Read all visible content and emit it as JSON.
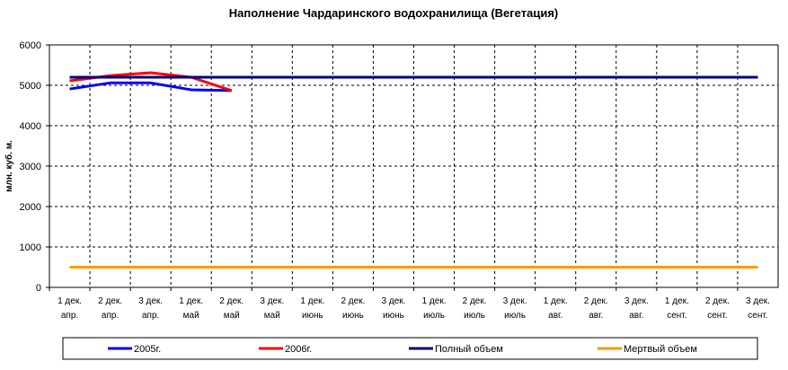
{
  "chart_data": {
    "type": "line",
    "title": "Наполнение Чардаринского водохранилища (Вегетация)",
    "y_label": "млн. куб. м.",
    "categories": [
      [
        "1 дек.",
        "апр."
      ],
      [
        "2 дек.",
        "апр."
      ],
      [
        "3 дек.",
        "апр."
      ],
      [
        "1 дек.",
        "май"
      ],
      [
        "2 дек.",
        "май"
      ],
      [
        "3 дек.",
        "май"
      ],
      [
        "1 дек.",
        "июнь"
      ],
      [
        "2 дек.",
        "июнь"
      ],
      [
        "3 дек.",
        "июнь"
      ],
      [
        "1 дек.",
        "июль"
      ],
      [
        "2 дек.",
        "июль"
      ],
      [
        "3 дек.",
        "июль"
      ],
      [
        "1 дек.",
        "авг."
      ],
      [
        "2 дек.",
        "авг."
      ],
      [
        "3 дек.",
        "авг."
      ],
      [
        "1 дек.",
        "сент."
      ],
      [
        "2 дек.",
        "сент."
      ],
      [
        "3 дек.",
        "сент."
      ]
    ],
    "series": [
      {
        "name": "2005г.",
        "color": "#0000ff",
        "values": [
          4910,
          5060,
          5060,
          4890,
          4870,
          null,
          null,
          null,
          null,
          null,
          null,
          null,
          null,
          null,
          null,
          null,
          null,
          null
        ]
      },
      {
        "name": "2006г.",
        "color": "#ff0000",
        "values": [
          5110,
          5240,
          5310,
          5200,
          4870,
          null,
          null,
          null,
          null,
          null,
          null,
          null,
          null,
          null,
          null,
          null,
          null,
          null
        ]
      },
      {
        "name": "Полный объем",
        "color": "#000080",
        "values": [
          5200,
          5200,
          5200,
          5200,
          5200,
          5200,
          5200,
          5200,
          5200,
          5200,
          5200,
          5200,
          5200,
          5200,
          5200,
          5200,
          5200,
          5200
        ]
      },
      {
        "name": "Мертвый объем",
        "color": "#ff9900",
        "values": [
          500,
          500,
          500,
          500,
          500,
          500,
          500,
          500,
          500,
          500,
          500,
          500,
          500,
          500,
          500,
          500,
          500,
          500
        ]
      }
    ],
    "ylim": [
      0,
      6000
    ],
    "yticks": [
      0,
      1000,
      2000,
      3000,
      4000,
      5000,
      6000
    ],
    "grid": true
  }
}
